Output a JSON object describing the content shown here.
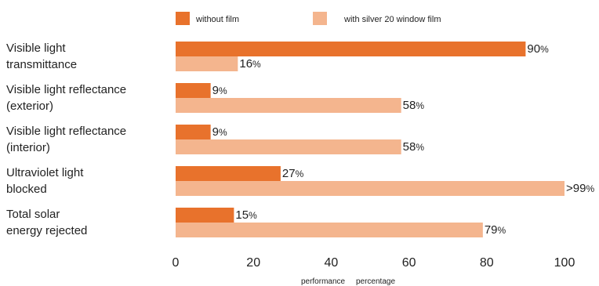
{
  "chart_data": {
    "type": "bar",
    "orientation": "horizontal",
    "categories": [
      [
        "Visible light",
        "transmittance"
      ],
      [
        "Visible light reflectance",
        "(exterior)"
      ],
      [
        "Visible light reflectance",
        "(interior)"
      ],
      [
        "Ultraviolet light",
        "blocked"
      ],
      [
        "Total solar",
        "energy rejected"
      ]
    ],
    "series": [
      {
        "name": "without film",
        "color": "#e8722c",
        "values": [
          90,
          9,
          9,
          27,
          15
        ],
        "labels": [
          "90",
          "9",
          "9",
          "27",
          "15"
        ]
      },
      {
        "name": "with silver 20 window film",
        "color": "#f4b58e",
        "values": [
          16,
          58,
          58,
          100,
          79
        ],
        "labels": [
          "16",
          "58",
          "58",
          ">99",
          "79"
        ]
      }
    ],
    "value_suffix": "%",
    "xlim": [
      0,
      100
    ],
    "xticks": [
      "0",
      "20",
      "40",
      "60",
      "80",
      "100"
    ],
    "xlabel": "performance     percentage",
    "legend_position": "top",
    "grid": false
  }
}
